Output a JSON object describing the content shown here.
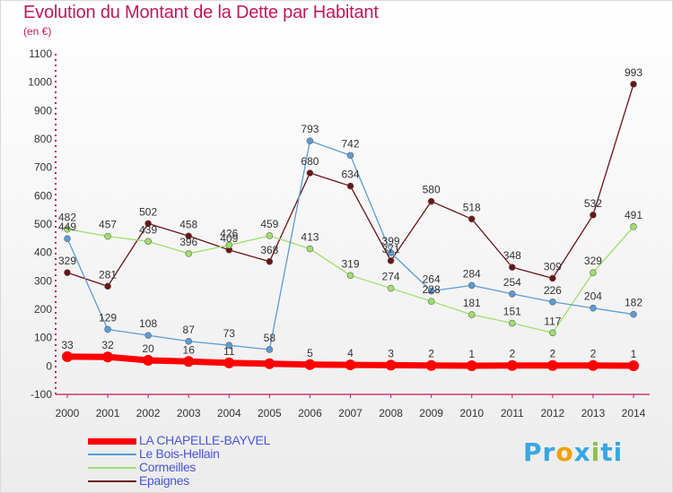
{
  "title": "Evolution du Montant de la Dette par Habitant",
  "unit": "(en €)",
  "logo": {
    "parts": [
      "Pr",
      "o",
      "x",
      "i",
      "ti"
    ],
    "colors": [
      "#3aa6e0",
      "#f0a000",
      "#3aa6e0",
      "#8bc34a",
      "#3aa6e0"
    ]
  },
  "chart_data": {
    "type": "line",
    "x": [
      2000,
      2001,
      2002,
      2003,
      2004,
      2005,
      2006,
      2007,
      2008,
      2009,
      2010,
      2011,
      2012,
      2013,
      2014
    ],
    "ylim": [
      -100,
      1100
    ],
    "yticks": [
      -100,
      0,
      100,
      200,
      300,
      400,
      500,
      600,
      700,
      800,
      900,
      1000,
      1100
    ],
    "grid": false,
    "legend": "bottom-left",
    "series": [
      {
        "name": "LA CHAPELLE-BAYVEL",
        "color": "#ff0000",
        "values": [
          33,
          32,
          20,
          16,
          11,
          8,
          5,
          4,
          3,
          2,
          1,
          2,
          2,
          2,
          1
        ],
        "labels": [
          "33",
          "32",
          "20",
          "16",
          "11",
          "",
          "5",
          "4",
          "3",
          "2",
          "1",
          "2",
          "2",
          "2",
          "1"
        ]
      },
      {
        "name": "Le Bois-Hellain",
        "color": "#5b9bd5",
        "values": [
          449,
          129,
          108,
          87,
          73,
          58,
          793,
          742,
          399,
          264,
          284,
          254,
          226,
          204,
          182
        ],
        "labels": [
          "449",
          "129",
          "108",
          "87",
          "73",
          "58",
          "793",
          "742",
          "399",
          "264",
          "284",
          "254",
          "226",
          "204",
          "182"
        ]
      },
      {
        "name": "Cormeilles",
        "color": "#9de06b",
        "values": [
          482,
          457,
          439,
          396,
          426,
          459,
          413,
          319,
          274,
          228,
          181,
          151,
          117,
          329,
          491
        ],
        "labels": [
          "482",
          "457",
          "439",
          "396",
          "426",
          "459",
          "413",
          "319",
          "274",
          "228",
          "181",
          "151",
          "117",
          "329",
          "491"
        ]
      },
      {
        "name": "Epaignes",
        "color": "#6b1414",
        "values": [
          329,
          281,
          502,
          458,
          409,
          368,
          680,
          634,
          371,
          580,
          518,
          348,
          309,
          532,
          993
        ],
        "labels": [
          "329",
          "281",
          "502",
          "458",
          "409",
          "368",
          "680",
          "634",
          "371",
          "580",
          "518",
          "348",
          "309",
          "532",
          "993"
        ]
      }
    ]
  }
}
